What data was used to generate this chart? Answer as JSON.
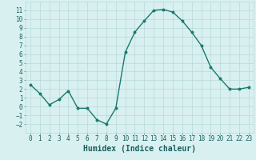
{
  "x": [
    0,
    1,
    2,
    3,
    4,
    5,
    6,
    7,
    8,
    9,
    10,
    11,
    12,
    13,
    14,
    15,
    16,
    17,
    18,
    19,
    20,
    21,
    22,
    23
  ],
  "y": [
    2.5,
    1.5,
    0.2,
    0.8,
    1.8,
    -0.2,
    -0.2,
    -1.5,
    -2.0,
    -0.2,
    6.2,
    8.5,
    9.8,
    11.0,
    11.1,
    10.8,
    9.8,
    8.5,
    7.0,
    4.5,
    3.2,
    2.0,
    2.0,
    2.2
  ],
  "line_color": "#1a7a6e",
  "marker": "o",
  "markersize": 1.8,
  "linewidth": 1.0,
  "xlabel": "Humidex (Indice chaleur)",
  "xlabel_fontsize": 7,
  "bg_color": "#d9f0f0",
  "grid_color": "#b8d8d8",
  "ylim": [
    -3,
    12
  ],
  "xlim": [
    -0.5,
    23.5
  ],
  "yticks": [
    -2,
    -1,
    0,
    1,
    2,
    3,
    4,
    5,
    6,
    7,
    8,
    9,
    10,
    11
  ],
  "xticks": [
    0,
    1,
    2,
    3,
    4,
    5,
    6,
    7,
    8,
    9,
    10,
    11,
    12,
    13,
    14,
    15,
    16,
    17,
    18,
    19,
    20,
    21,
    22,
    23
  ],
  "tick_fontsize": 5.5,
  "tick_color": "#1a6060"
}
